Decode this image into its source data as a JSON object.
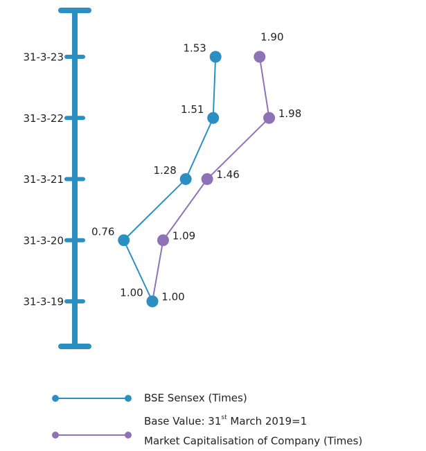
{
  "chart_data": {
    "type": "line",
    "orientation": "horizontal",
    "categories": [
      "31-3-19",
      "31-3-20",
      "31-3-21",
      "31-3-22",
      "31-3-23"
    ],
    "series": [
      {
        "name": "BSE Sensex (Times)",
        "color": "#2b8fc2",
        "values": [
          1.0,
          0.76,
          1.28,
          1.51,
          1.53
        ],
        "value_labels": [
          "1.00",
          "0.76",
          "1.28",
          "1.51",
          "1.53"
        ]
      },
      {
        "name": "Market Capitalisation of Company (Times)",
        "color": "#8e72b5",
        "values": [
          1.0,
          1.09,
          1.46,
          1.98,
          1.9
        ],
        "value_labels": [
          "1.00",
          "1.09",
          "1.46",
          "1.98",
          "1.90"
        ]
      }
    ],
    "note": {
      "pre": "Base Value: 31",
      "sup": "st",
      "post": " March 2019=1"
    },
    "axis_color": "#2b8fc2"
  }
}
